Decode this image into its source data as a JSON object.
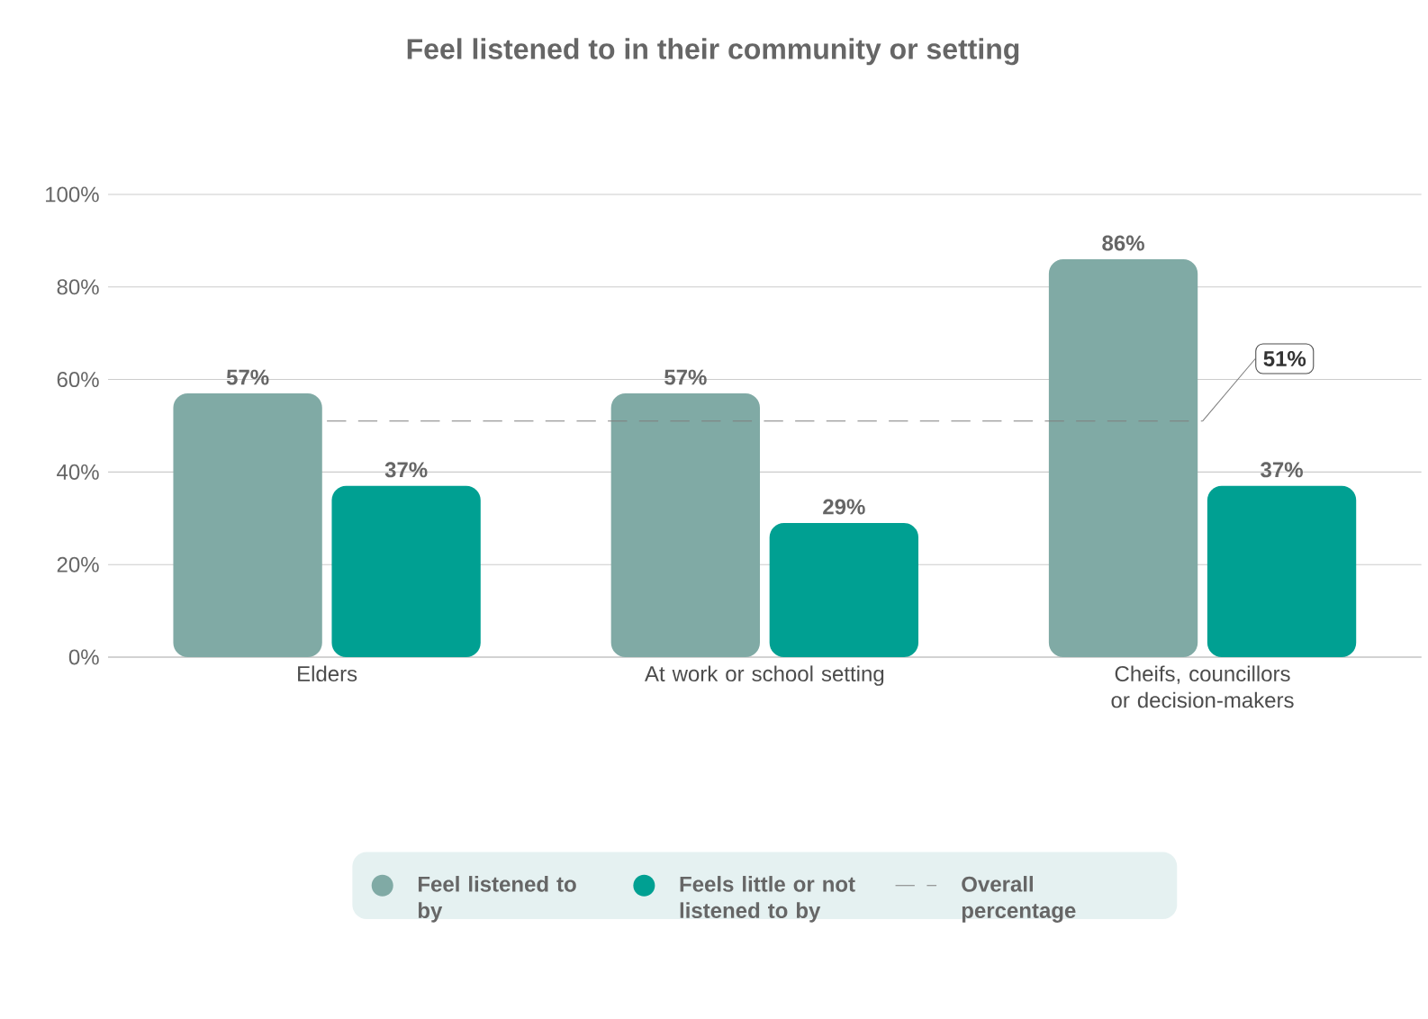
{
  "chart_data": {
    "type": "bar",
    "title": "Feel listened to in their community or setting",
    "categories": [
      "Elders",
      "At work or school setting",
      "Cheifs, councillors or decision-makers"
    ],
    "series": [
      {
        "name": "Feel listened to by",
        "color": "#80aaa5",
        "values": [
          57,
          57,
          86
        ],
        "value_labels": [
          "57%",
          "57%",
          "86%"
        ]
      },
      {
        "name": "Feels little or not listened to by",
        "color": "#00a092",
        "values": [
          37,
          29,
          37
        ],
        "value_labels": [
          "37%",
          "29%",
          "37%"
        ]
      },
      {
        "name": "Overall percentage",
        "type": "line",
        "line_style": "dashed",
        "color": "#7f7f7f",
        "values": [
          51,
          51,
          51
        ],
        "value_labels": [
          null,
          null,
          "51%"
        ]
      }
    ],
    "ylim": [
      0,
      100
    ],
    "yticks": [
      {
        "value": 0,
        "label": "0%"
      },
      {
        "value": 20,
        "label": "20%"
      },
      {
        "value": 40,
        "label": "40%"
      },
      {
        "value": 60,
        "label": "60%"
      },
      {
        "value": 80,
        "label": "80%"
      },
      {
        "value": 100,
        "label": "100%"
      }
    ],
    "grid": "y",
    "legend": "bottom"
  }
}
